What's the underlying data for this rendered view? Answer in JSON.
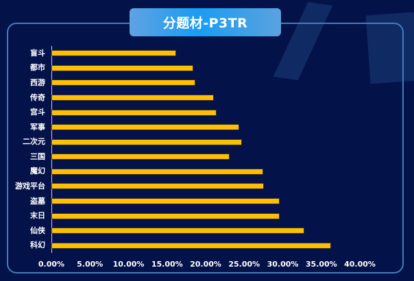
{
  "title": "分题材-P3TR",
  "colors": {
    "background": "#04124a",
    "frame": "#3f7fbe",
    "bar": "#ffc000",
    "text": "#ffffff"
  },
  "chart_data": {
    "type": "bar",
    "orientation": "horizontal",
    "title": "分题材-P3TR",
    "xlabel": "",
    "ylabel": "",
    "categories": [
      "盲斗",
      "都市",
      "西游",
      "传奇",
      "宫斗",
      "军事",
      "二次元",
      "三国",
      "魔幻",
      "游戏平台",
      "盗墓",
      "末日",
      "仙侠",
      "科幻"
    ],
    "values": [
      16.0,
      18.2,
      18.5,
      20.9,
      21.2,
      24.2,
      24.5,
      22.9,
      27.3,
      27.4,
      29.4,
      29.4,
      32.6,
      36.1
    ],
    "value_format": "percent",
    "xlim": [
      0,
      40
    ],
    "x_ticks": [
      "0.00%",
      "5.00%",
      "10.00%",
      "15.00%",
      "20.00%",
      "25.00%",
      "30.00%",
      "35.00%",
      "40.00%"
    ],
    "grid": false,
    "legend": "none"
  }
}
